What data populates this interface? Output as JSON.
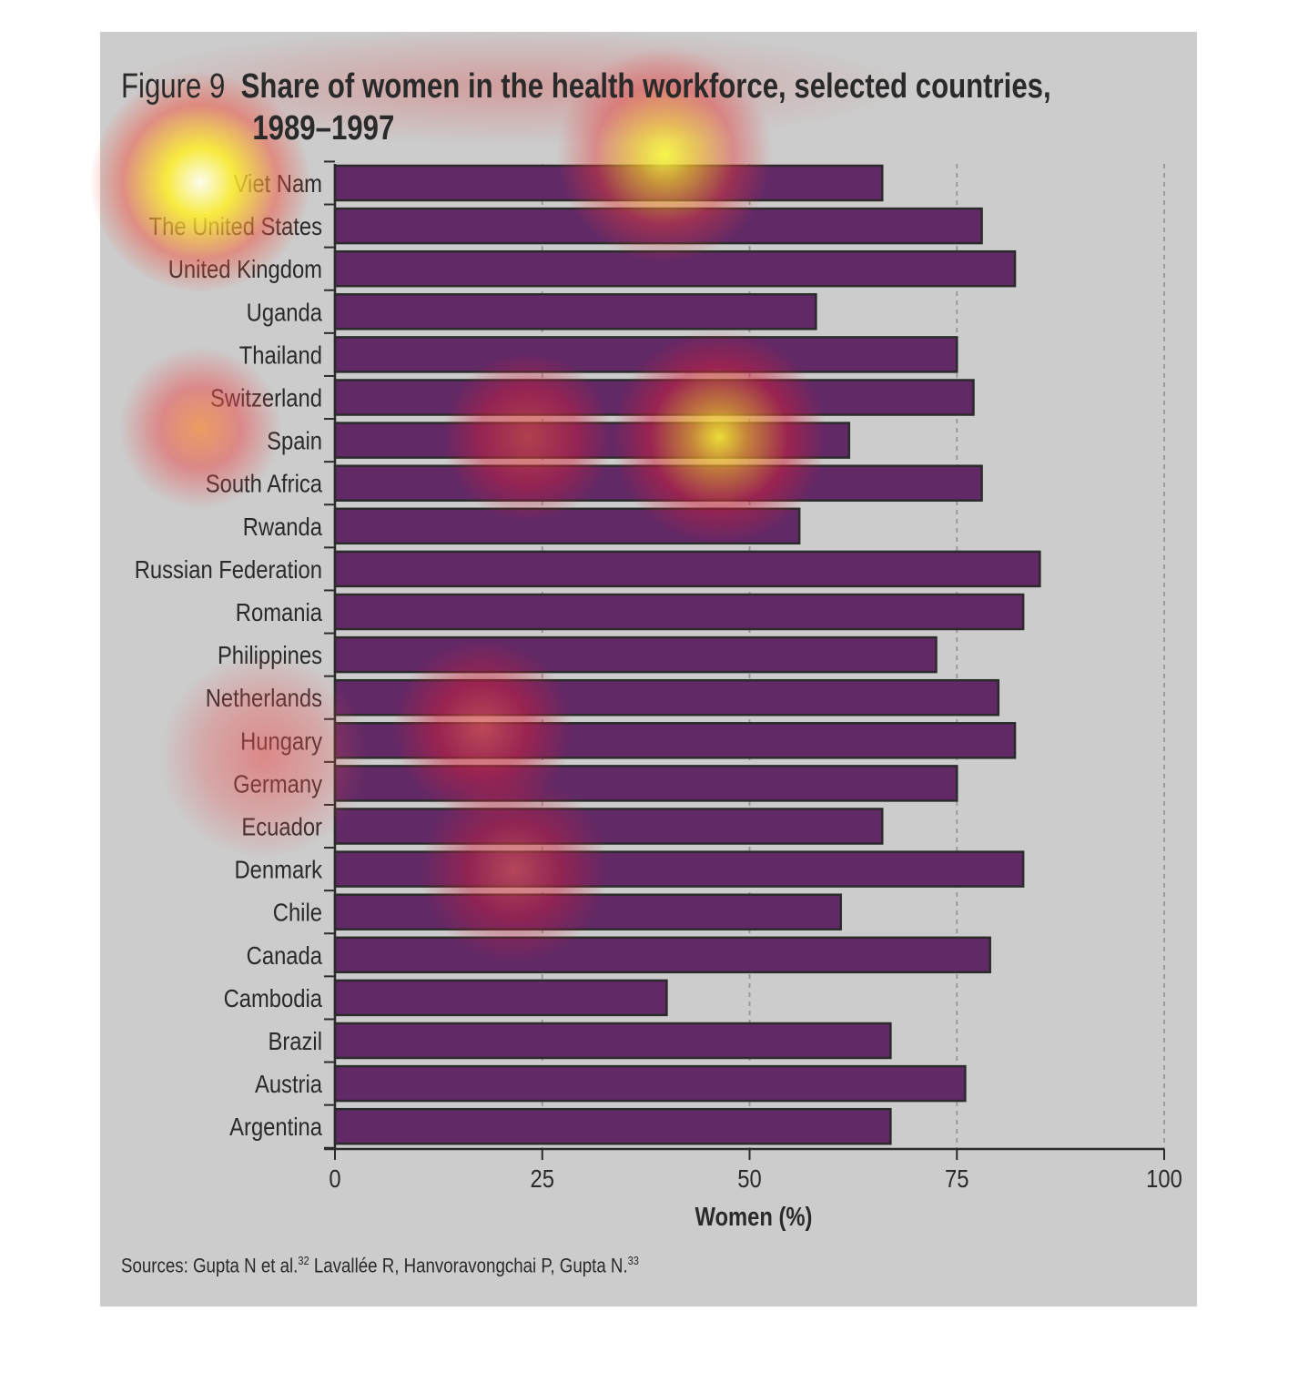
{
  "figure": {
    "number": "Figure 9",
    "title_line1": "Share of women in the health workforce, selected countries,",
    "title_line2": "1989–1997",
    "sources_text": "Sources: Gupta N et al.",
    "sources_sup1": "32",
    "sources_text2": " Lavallée R, Hanvoravongchai P, Gupta N.",
    "sources_sup2": "33"
  },
  "colors": {
    "bar_fill": "#612966",
    "bar_stroke": "#2b2b2b",
    "panel_bg": "#cccccc",
    "grid": "#9a9a9a",
    "text": "#2a2a2a"
  },
  "chart_data": {
    "type": "bar",
    "orientation": "horizontal",
    "title": "Share of women in the health workforce, selected countries, 1989–1997",
    "xlabel": "Women (%)",
    "ylabel": "",
    "xlim": [
      0,
      100
    ],
    "xticks": [
      0,
      25,
      50,
      75,
      100
    ],
    "xtick_labels": [
      "0",
      "25",
      "50",
      "75",
      "100"
    ],
    "grid": "vertical dashed at 25, 50, 75, 100",
    "categories": [
      "Viet Nam",
      "The United States",
      "United Kingdom",
      "Uganda",
      "Thailand",
      "Switzerland",
      "Spain",
      "South Africa",
      "Rwanda",
      "Russian Federation",
      "Romania",
      "Philippines",
      "Netherlands",
      "Hungary",
      "Germany",
      "Ecuador",
      "Denmark",
      "Chile",
      "Canada",
      "Cambodia",
      "Brazil",
      "Austria",
      "Argentina"
    ],
    "values": [
      66,
      78,
      82,
      58,
      75,
      77,
      62,
      78,
      56,
      85,
      83,
      72.5,
      80,
      82,
      75,
      66,
      83,
      61,
      79,
      40,
      67,
      76,
      67
    ]
  }
}
